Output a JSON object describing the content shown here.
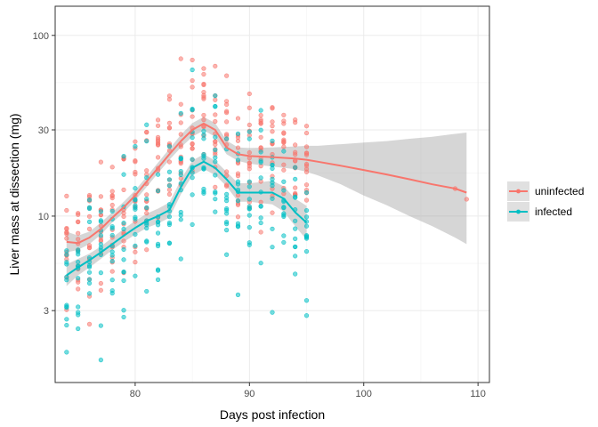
{
  "chart_data": {
    "type": "scatter",
    "xlabel": "Days post infection",
    "ylabel": "Liver mass at dissection (mg)",
    "y_scale": "log10",
    "xlim": [
      73,
      111
    ],
    "ylim": [
      1.2,
      145
    ],
    "x_ticks": [
      80,
      90,
      100,
      110
    ],
    "y_ticks": [
      3,
      10,
      30,
      100
    ],
    "grid": true,
    "legend_position": "right",
    "colors": {
      "uninfected": "#F8766D",
      "infected": "#00BFC4",
      "ribbon": "#999999"
    },
    "series": [
      {
        "name": "uninfected",
        "color": "#F8766D",
        "smooth": {
          "x": [
            74,
            75,
            76,
            77,
            78,
            79,
            80,
            81,
            82,
            83,
            84,
            85,
            86,
            87,
            88,
            89,
            90,
            92,
            94,
            95,
            96,
            98,
            100,
            102,
            104,
            106,
            108,
            109
          ],
          "y": [
            7.2,
            7.1,
            7.6,
            8.5,
            9.8,
            11.2,
            13.0,
            15.5,
            18.5,
            22.0,
            26.0,
            30.0,
            32.5,
            30.0,
            24.0,
            22.0,
            21.5,
            21.2,
            20.8,
            20.5,
            20.0,
            19.0,
            18.0,
            17.0,
            16.0,
            15.0,
            14.2,
            13.5
          ],
          "lower": [
            6.3,
            6.5,
            7.0,
            7.9,
            9.2,
            10.5,
            12.2,
            14.5,
            17.3,
            20.5,
            24.0,
            27.5,
            29.8,
            27.5,
            22.0,
            20.2,
            19.5,
            18.8,
            18.2,
            17.6,
            16.8,
            15.0,
            13.0,
            11.5,
            10.0,
            8.8,
            7.6,
            7.0
          ],
          "upper": [
            8.2,
            7.8,
            8.2,
            9.2,
            10.5,
            12.0,
            13.9,
            16.5,
            19.8,
            23.6,
            28.2,
            32.7,
            35.4,
            32.7,
            26.2,
            24.0,
            23.8,
            24.0,
            24.3,
            24.5,
            24.5,
            25.0,
            25.5,
            26.0,
            26.8,
            27.5,
            28.5,
            29.0
          ]
        }
      },
      {
        "name": "infected",
        "color": "#00BFC4",
        "smooth": {
          "x": [
            74,
            75,
            76,
            77,
            78,
            79,
            80,
            81,
            82,
            83,
            84,
            85,
            86,
            87,
            88,
            89,
            90,
            91,
            92,
            93,
            94,
            95
          ],
          "y": [
            4.7,
            5.2,
            5.7,
            6.3,
            7.0,
            7.8,
            8.6,
            9.4,
            10.0,
            10.8,
            14.5,
            18.5,
            20.0,
            18.5,
            16.0,
            13.5,
            13.5,
            13.5,
            13.5,
            12.5,
            10.5,
            9.2
          ],
          "lower": [
            4.1,
            4.7,
            5.2,
            5.8,
            6.5,
            7.2,
            7.9,
            8.6,
            9.1,
            9.8,
            13.2,
            16.8,
            18.2,
            16.9,
            14.6,
            12.0,
            12.0,
            11.8,
            11.6,
            10.6,
            8.8,
            7.4
          ],
          "upper": [
            5.4,
            5.8,
            6.2,
            6.8,
            7.6,
            8.5,
            9.4,
            10.3,
            11.0,
            11.9,
            15.9,
            20.3,
            22.0,
            20.3,
            17.6,
            15.2,
            15.2,
            15.4,
            15.7,
            14.6,
            12.5,
            11.4
          ]
        }
      }
    ]
  },
  "legend": {
    "items": [
      {
        "label": "uninfected",
        "color": "#F8766D"
      },
      {
        "label": "infected",
        "color": "#00BFC4"
      }
    ]
  }
}
